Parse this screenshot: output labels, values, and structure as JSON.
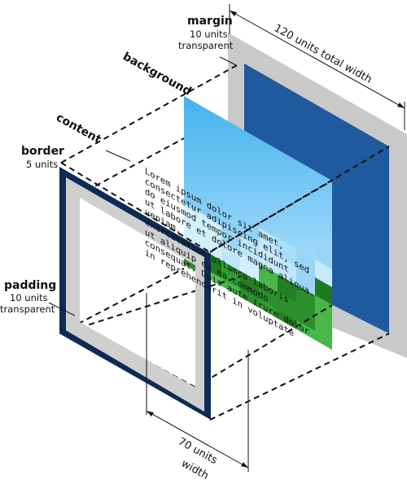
{
  "labels": {
    "margin": {
      "title": "margin",
      "lines": [
        "10 units",
        "transparent"
      ]
    },
    "background": {
      "title": "background",
      "lines": []
    },
    "content": {
      "title": "content",
      "lines": []
    },
    "border": {
      "title": "border",
      "lines": [
        "5 units"
      ]
    },
    "padding": {
      "title": "padding",
      "lines": [
        "10 units",
        "transparent"
      ]
    }
  },
  "dimensions": {
    "total_width": "120 units total width",
    "content_width": [
      "70 units",
      "width"
    ]
  },
  "content_text": [
    "Lorem ipsum dolor sit amet,",
    "consectetur adipiscing elit, sed",
    "do eiusmod tempor incididunt",
    "ut labore et dolore magna aliqua.",
    "",
    "veniam,",
    "exercitation ullamco laboris",
    "ut aliquip ex ea commodo",
    "consequat. Duis aute irure dolor",
    "in reprehenderit in voluptate"
  ],
  "colors": {
    "margin_plane": "#c9c9c9",
    "blue_panel": "#1f5a9e",
    "border": "#0d2b55",
    "padding": "#cfcfcf",
    "sky": "#4db8f0",
    "grass": "#2a9a2a"
  }
}
